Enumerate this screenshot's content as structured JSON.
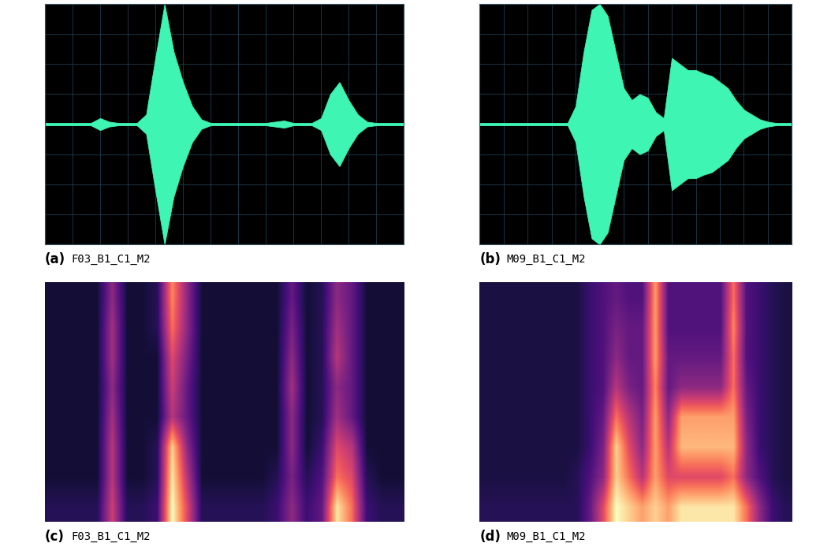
{
  "chart_data": [
    {
      "type": "waveform",
      "caption": {
        "label": "(a)",
        "text": "F03_B1_C1_M2"
      },
      "color": "#3ef5b4",
      "grid": true,
      "tick_labels": false,
      "xlim": [
        0,
        39
      ],
      "ylim": [
        -1,
        1
      ],
      "xticks": [
        0,
        3,
        6,
        9,
        12,
        15,
        18,
        21,
        24,
        27,
        30,
        33,
        36,
        39
      ],
      "yticks": [
        -1,
        -0.75,
        -0.5,
        -0.25,
        0,
        0.25,
        0.5,
        0.75,
        1
      ],
      "values": [
        0.01,
        0.01,
        0.01,
        0.01,
        0.01,
        0.01,
        0.05,
        0.02,
        0.01,
        0.01,
        0.01,
        0.08,
        0.55,
        1.0,
        0.6,
        0.35,
        0.15,
        0.04,
        0.01,
        0.01,
        0.01,
        0.01,
        0.01,
        0.01,
        0.01,
        0.02,
        0.03,
        0.01,
        0.01,
        0.01,
        0.05,
        0.25,
        0.35,
        0.2,
        0.08,
        0.02,
        0.01,
        0.01,
        0.01,
        0.01
      ]
    },
    {
      "type": "waveform",
      "caption": {
        "label": "(b)",
        "text": "M09_B1_C1_M2"
      },
      "color": "#3ef5b4",
      "grid": true,
      "tick_labels": false,
      "xlim": [
        0,
        39
      ],
      "ylim": [
        -1,
        1
      ],
      "xticks": [
        0,
        3,
        6,
        9,
        12,
        15,
        18,
        21,
        24,
        27,
        30,
        33,
        36,
        39
      ],
      "yticks": [
        -1,
        -0.75,
        -0.5,
        -0.25,
        0,
        0.25,
        0.5,
        0.75,
        1
      ],
      "values": [
        0.01,
        0.01,
        0.01,
        0.01,
        0.01,
        0.01,
        0.01,
        0.01,
        0.01,
        0.01,
        0.01,
        0.01,
        0.15,
        0.6,
        0.95,
        1.0,
        0.9,
        0.6,
        0.3,
        0.2,
        0.25,
        0.22,
        0.1,
        0.05,
        0.55,
        0.5,
        0.45,
        0.45,
        0.42,
        0.4,
        0.35,
        0.3,
        0.2,
        0.12,
        0.08,
        0.04,
        0.02,
        0.01,
        0.01,
        0.01
      ]
    },
    {
      "type": "heatmap",
      "caption": {
        "label": "(c)",
        "text": "F03_B1_C1_M2"
      },
      "tick_labels": false,
      "color_range": [
        0,
        1
      ],
      "cells": [
        [
          0.15,
          0.15,
          0.15,
          0.15,
          0.55,
          0.15,
          0.15,
          0.2,
          1.0,
          0.6,
          0.15,
          0.15,
          0.15,
          0.15,
          0.15,
          0.2,
          0.4,
          0.2,
          0.3,
          0.95,
          0.7,
          0.2,
          0.15,
          0.15
        ],
        [
          0.1,
          0.1,
          0.1,
          0.1,
          0.5,
          0.1,
          0.1,
          0.15,
          0.95,
          0.5,
          0.1,
          0.1,
          0.1,
          0.1,
          0.1,
          0.15,
          0.35,
          0.15,
          0.25,
          0.7,
          0.6,
          0.15,
          0.1,
          0.1
        ],
        [
          0.1,
          0.1,
          0.1,
          0.1,
          0.5,
          0.1,
          0.1,
          0.15,
          0.9,
          0.4,
          0.1,
          0.1,
          0.1,
          0.1,
          0.1,
          0.1,
          0.4,
          0.1,
          0.2,
          0.6,
          0.5,
          0.1,
          0.1,
          0.1
        ],
        [
          0.1,
          0.1,
          0.1,
          0.1,
          0.45,
          0.1,
          0.1,
          0.1,
          0.5,
          0.3,
          0.1,
          0.1,
          0.1,
          0.1,
          0.1,
          0.1,
          0.4,
          0.1,
          0.15,
          0.45,
          0.3,
          0.1,
          0.1,
          0.1
        ],
        [
          0.1,
          0.1,
          0.1,
          0.1,
          0.4,
          0.1,
          0.1,
          0.1,
          0.55,
          0.3,
          0.1,
          0.1,
          0.1,
          0.1,
          0.1,
          0.1,
          0.45,
          0.1,
          0.15,
          0.4,
          0.3,
          0.1,
          0.1,
          0.1
        ],
        [
          0.1,
          0.1,
          0.1,
          0.1,
          0.45,
          0.1,
          0.1,
          0.1,
          0.6,
          0.35,
          0.1,
          0.1,
          0.1,
          0.1,
          0.1,
          0.1,
          0.4,
          0.1,
          0.15,
          0.5,
          0.3,
          0.1,
          0.1,
          0.1
        ],
        [
          0.1,
          0.1,
          0.1,
          0.1,
          0.45,
          0.1,
          0.1,
          0.15,
          0.7,
          0.4,
          0.1,
          0.1,
          0.1,
          0.1,
          0.1,
          0.1,
          0.35,
          0.1,
          0.15,
          0.45,
          0.3,
          0.1,
          0.1,
          0.1
        ],
        [
          0.1,
          0.1,
          0.1,
          0.1,
          0.4,
          0.1,
          0.1,
          0.15,
          0.75,
          0.4,
          0.1,
          0.1,
          0.1,
          0.1,
          0.1,
          0.1,
          0.3,
          0.1,
          0.15,
          0.4,
          0.3,
          0.1,
          0.1,
          0.1
        ]
      ]
    },
    {
      "type": "heatmap",
      "caption": {
        "label": "(d)",
        "text": "M09_B1_C1_M2"
      },
      "tick_labels": false,
      "color_range": [
        0,
        1
      ],
      "cells": [
        [
          0.15,
          0.15,
          0.15,
          0.15,
          0.15,
          0.15,
          0.15,
          0.15,
          0.3,
          0.6,
          1.0,
          0.9,
          0.8,
          0.9,
          0.8,
          0.95,
          0.95,
          0.95,
          0.95,
          0.95,
          0.7,
          0.4,
          0.2,
          0.15
        ],
        [
          0.12,
          0.12,
          0.12,
          0.12,
          0.12,
          0.12,
          0.12,
          0.15,
          0.25,
          0.4,
          0.9,
          0.7,
          0.5,
          0.8,
          0.6,
          0.6,
          0.6,
          0.6,
          0.6,
          0.7,
          0.4,
          0.25,
          0.15,
          0.12
        ],
        [
          0.12,
          0.12,
          0.12,
          0.12,
          0.12,
          0.12,
          0.12,
          0.12,
          0.2,
          0.35,
          0.9,
          0.6,
          0.4,
          0.8,
          0.5,
          0.85,
          0.85,
          0.85,
          0.85,
          0.85,
          0.4,
          0.2,
          0.15,
          0.12
        ],
        [
          0.12,
          0.12,
          0.12,
          0.12,
          0.12,
          0.12,
          0.12,
          0.12,
          0.2,
          0.3,
          0.7,
          0.5,
          0.35,
          0.8,
          0.4,
          0.8,
          0.8,
          0.8,
          0.8,
          0.8,
          0.35,
          0.2,
          0.15,
          0.12
        ],
        [
          0.12,
          0.12,
          0.12,
          0.12,
          0.12,
          0.12,
          0.12,
          0.12,
          0.2,
          0.25,
          0.5,
          0.35,
          0.3,
          0.75,
          0.3,
          0.4,
          0.4,
          0.4,
          0.4,
          0.7,
          0.3,
          0.2,
          0.15,
          0.12
        ],
        [
          0.12,
          0.12,
          0.12,
          0.12,
          0.12,
          0.12,
          0.12,
          0.12,
          0.2,
          0.25,
          0.4,
          0.3,
          0.3,
          0.8,
          0.3,
          0.3,
          0.3,
          0.3,
          0.3,
          0.7,
          0.25,
          0.2,
          0.15,
          0.12
        ],
        [
          0.12,
          0.12,
          0.12,
          0.12,
          0.12,
          0.12,
          0.12,
          0.12,
          0.2,
          0.25,
          0.35,
          0.3,
          0.3,
          0.8,
          0.25,
          0.25,
          0.25,
          0.25,
          0.25,
          0.75,
          0.25,
          0.2,
          0.15,
          0.12
        ],
        [
          0.12,
          0.12,
          0.12,
          0.12,
          0.12,
          0.12,
          0.12,
          0.12,
          0.2,
          0.25,
          0.3,
          0.25,
          0.25,
          0.8,
          0.25,
          0.25,
          0.25,
          0.25,
          0.25,
          0.7,
          0.25,
          0.2,
          0.15,
          0.12
        ]
      ]
    }
  ]
}
